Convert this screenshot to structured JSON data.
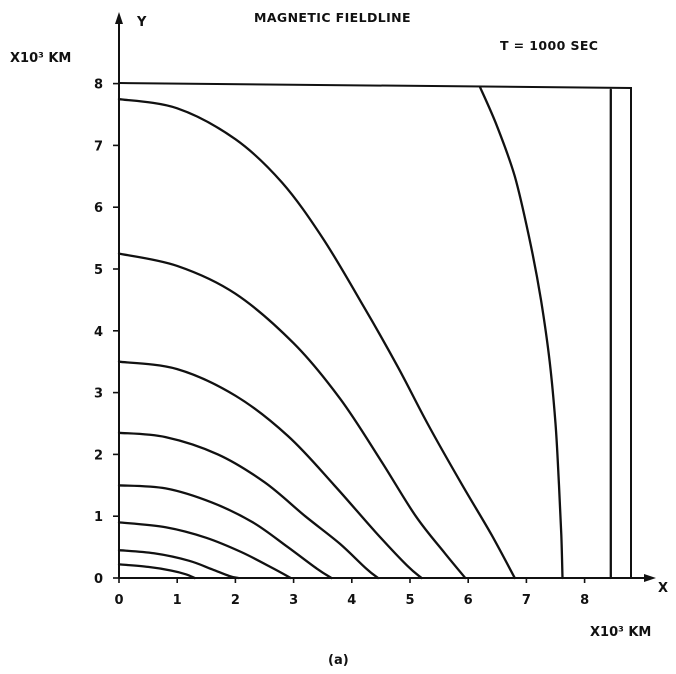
{
  "chart_data": {
    "type": "line",
    "title": "MAGNETIC FIELDLINE",
    "annotation": "T = 1000 SEC",
    "xlabel": "X",
    "ylabel": "Y",
    "x_unit": "X10³ KM",
    "y_unit": "X10³ KM",
    "caption": "(a)",
    "xlim": [
      0,
      8.7
    ],
    "ylim": [
      0,
      8
    ],
    "xticks": [
      "0",
      "1",
      "2",
      "3",
      "4",
      "5",
      "6",
      "7",
      "8"
    ],
    "yticks": [
      "0",
      "1",
      "2",
      "3",
      "4",
      "5",
      "6",
      "7",
      "8"
    ],
    "grid": false,
    "series": [
      {
        "points": [
          [
            0,
            0.22
          ],
          [
            0.5,
            0.18
          ],
          [
            0.9,
            0.12
          ],
          [
            1.15,
            0.06
          ],
          [
            1.3,
            0.0
          ]
        ]
      },
      {
        "points": [
          [
            0,
            0.45
          ],
          [
            0.6,
            0.4
          ],
          [
            1.2,
            0.28
          ],
          [
            1.6,
            0.14
          ],
          [
            1.9,
            0.03
          ],
          [
            2.05,
            0.0
          ]
        ]
      },
      {
        "points": [
          [
            0,
            0.9
          ],
          [
            0.8,
            0.82
          ],
          [
            1.5,
            0.65
          ],
          [
            2.1,
            0.42
          ],
          [
            2.6,
            0.18
          ],
          [
            2.95,
            0.0
          ]
        ]
      },
      {
        "points": [
          [
            0,
            1.5
          ],
          [
            0.8,
            1.45
          ],
          [
            1.6,
            1.22
          ],
          [
            2.3,
            0.9
          ],
          [
            2.9,
            0.5
          ],
          [
            3.4,
            0.15
          ],
          [
            3.65,
            0.0
          ]
        ]
      },
      {
        "points": [
          [
            0,
            2.35
          ],
          [
            0.8,
            2.28
          ],
          [
            1.7,
            2.0
          ],
          [
            2.5,
            1.55
          ],
          [
            3.2,
            1.0
          ],
          [
            3.8,
            0.55
          ],
          [
            4.25,
            0.15
          ],
          [
            4.45,
            0.0
          ]
        ]
      },
      {
        "points": [
          [
            0,
            3.5
          ],
          [
            1.0,
            3.38
          ],
          [
            2.0,
            2.95
          ],
          [
            2.9,
            2.3
          ],
          [
            3.7,
            1.5
          ],
          [
            4.4,
            0.75
          ],
          [
            4.95,
            0.2
          ],
          [
            5.2,
            0.0
          ]
        ]
      },
      {
        "points": [
          [
            0,
            5.25
          ],
          [
            1.0,
            5.05
          ],
          [
            2.0,
            4.6
          ],
          [
            3.0,
            3.8
          ],
          [
            3.8,
            2.9
          ],
          [
            4.5,
            1.9
          ],
          [
            5.1,
            1.0
          ],
          [
            5.6,
            0.4
          ],
          [
            5.95,
            0.0
          ]
        ]
      },
      {
        "points": [
          [
            0,
            7.75
          ],
          [
            1.0,
            7.6
          ],
          [
            2.0,
            7.1
          ],
          [
            2.8,
            6.4
          ],
          [
            3.5,
            5.5
          ],
          [
            4.2,
            4.4
          ],
          [
            4.8,
            3.4
          ],
          [
            5.3,
            2.5
          ],
          [
            5.9,
            1.5
          ],
          [
            6.4,
            0.7
          ],
          [
            6.8,
            0.0
          ]
        ]
      },
      {
        "points": [
          [
            6.2,
            7.95
          ],
          [
            6.5,
            7.3
          ],
          [
            6.8,
            6.5
          ],
          [
            7.05,
            5.5
          ],
          [
            7.25,
            4.5
          ],
          [
            7.4,
            3.5
          ],
          [
            7.5,
            2.5
          ],
          [
            7.56,
            1.5
          ],
          [
            7.6,
            0.7
          ],
          [
            7.62,
            0.0
          ]
        ]
      },
      {
        "points": [
          [
            8.45,
            7.9
          ],
          [
            8.45,
            0.0
          ]
        ]
      }
    ]
  }
}
